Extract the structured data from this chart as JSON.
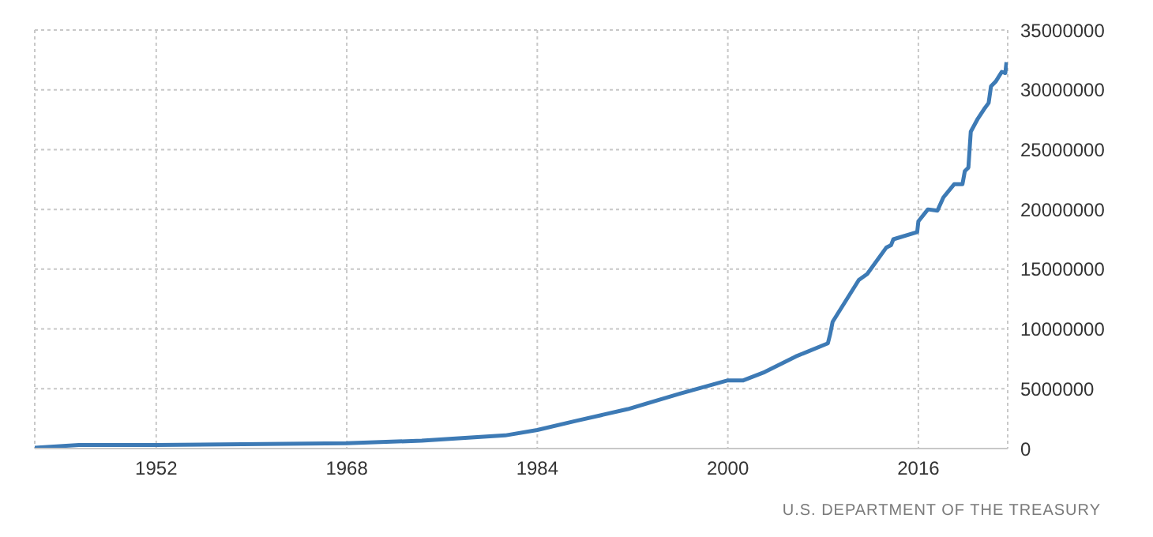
{
  "chart_data": {
    "type": "line",
    "annotations": [
      "U.S. DEPARTMENT OF THE TREASURY"
    ],
    "x": [
      1941.8,
      1945.5,
      1952,
      1968,
      1974.3,
      1981.3,
      1984,
      1987.2,
      1991.6,
      1996,
      2000,
      2001.3,
      2003.1,
      2005.7,
      2008.4,
      2008.6,
      2008.8,
      2011,
      2011.7,
      2013.3,
      2013.7,
      2013.9,
      2015.9,
      2016,
      2016.8,
      2017.6,
      2018.1,
      2019,
      2019.7,
      2019.9,
      2020.2,
      2020.4,
      2021,
      2021.6,
      2021.9,
      2022.1,
      2022.5,
      2023,
      2023.3,
      2023.4
    ],
    "series": [
      {
        "color": "#3d7ab5",
        "values": [
          70000,
          300000,
          300000,
          440000,
          660000,
          1100000,
          1550000,
          2300000,
          3300000,
          4600000,
          5700000,
          5700000,
          6400000,
          7700000,
          8800000,
          9600000,
          10600000,
          14100000,
          14600000,
          16800000,
          17000000,
          17500000,
          18100000,
          19000000,
          20000000,
          19900000,
          21000000,
          22100000,
          22100000,
          23200000,
          23500000,
          26500000,
          27600000,
          28500000,
          28900000,
          30300000,
          30700000,
          31500000,
          31400000,
          32300000
        ]
      }
    ],
    "xlim": [
      1941.8,
      2023.5
    ],
    "xticks": [
      1952,
      1968,
      1984,
      2000,
      2016
    ],
    "ylim": [
      0,
      35000000
    ],
    "yticks": [
      0,
      5000000,
      10000000,
      15000000,
      20000000,
      25000000,
      30000000,
      35000000
    ],
    "grid": true,
    "line_style": "solid",
    "marker": "none"
  }
}
